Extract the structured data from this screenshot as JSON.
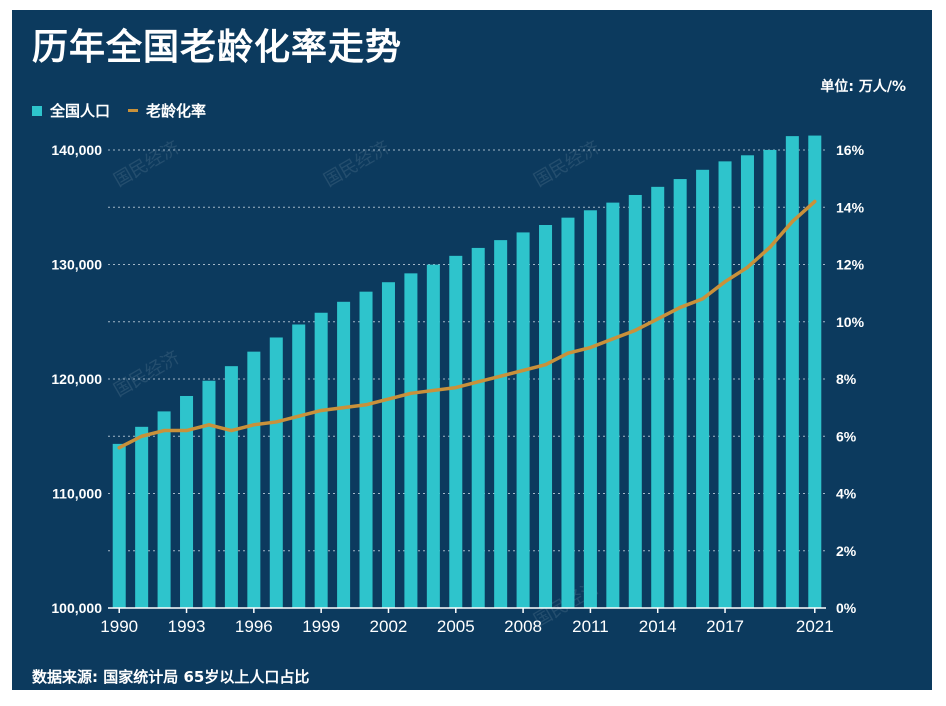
{
  "header": {
    "title": "历年全国老龄化率走势",
    "unit": "单位: 万人/%"
  },
  "legend": {
    "population_label": "全国人口",
    "aging_label": "老龄化率"
  },
  "footer": {
    "source": "数据来源: 国家统计局 65岁以上人口占比"
  },
  "watermark": "国民经济",
  "colors": {
    "background": "#0c3a5e",
    "bar": "#2ec4cc",
    "line": "#c9913a",
    "grid": "#c8d6e2",
    "text": "#ffffff"
  },
  "chart_data": {
    "type": "bar",
    "x": [
      1990,
      1991,
      1992,
      1993,
      1994,
      1995,
      1996,
      1997,
      1998,
      1999,
      2000,
      2001,
      2002,
      2003,
      2004,
      2005,
      2006,
      2007,
      2008,
      2009,
      2010,
      2011,
      2012,
      2013,
      2014,
      2015,
      2016,
      2017,
      2018,
      2019,
      2020,
      2021
    ],
    "xticks": [
      "1990",
      "1993",
      "1996",
      "1999",
      "2002",
      "2005",
      "2008",
      "2011",
      "2014",
      "2017",
      "2021"
    ],
    "series": [
      {
        "name": "全国人口",
        "type": "bar",
        "axis": "left",
        "values": [
          114333,
          115823,
          117171,
          118517,
          119850,
          121121,
          122389,
          123626,
          124761,
          125786,
          126743,
          127627,
          128453,
          129227,
          129988,
          130756,
          131448,
          132129,
          132802,
          133450,
          134091,
          134735,
          135404,
          136072,
          136782,
          137462,
          138271,
          139008,
          139538,
          140005,
          141212,
          141260
        ]
      },
      {
        "name": "老龄化率",
        "type": "line",
        "axis": "right",
        "values": [
          5.6,
          6.0,
          6.2,
          6.2,
          6.4,
          6.2,
          6.4,
          6.5,
          6.7,
          6.9,
          7.0,
          7.1,
          7.3,
          7.5,
          7.6,
          7.7,
          7.9,
          8.1,
          8.3,
          8.5,
          8.9,
          9.1,
          9.4,
          9.7,
          10.1,
          10.5,
          10.8,
          11.4,
          11.9,
          12.6,
          13.5,
          14.2
        ]
      }
    ],
    "ylim_left": [
      100000,
      140000
    ],
    "yticks_left": [
      "100,000",
      "110,000",
      "120,000",
      "130,000",
      "140,000"
    ],
    "ylim_right": [
      0,
      16
    ],
    "yticks_right": [
      "0%",
      "2%",
      "4%",
      "6%",
      "8%",
      "10%",
      "12%",
      "14%",
      "16%"
    ],
    "grid": true,
    "legend_position": "top-left"
  }
}
